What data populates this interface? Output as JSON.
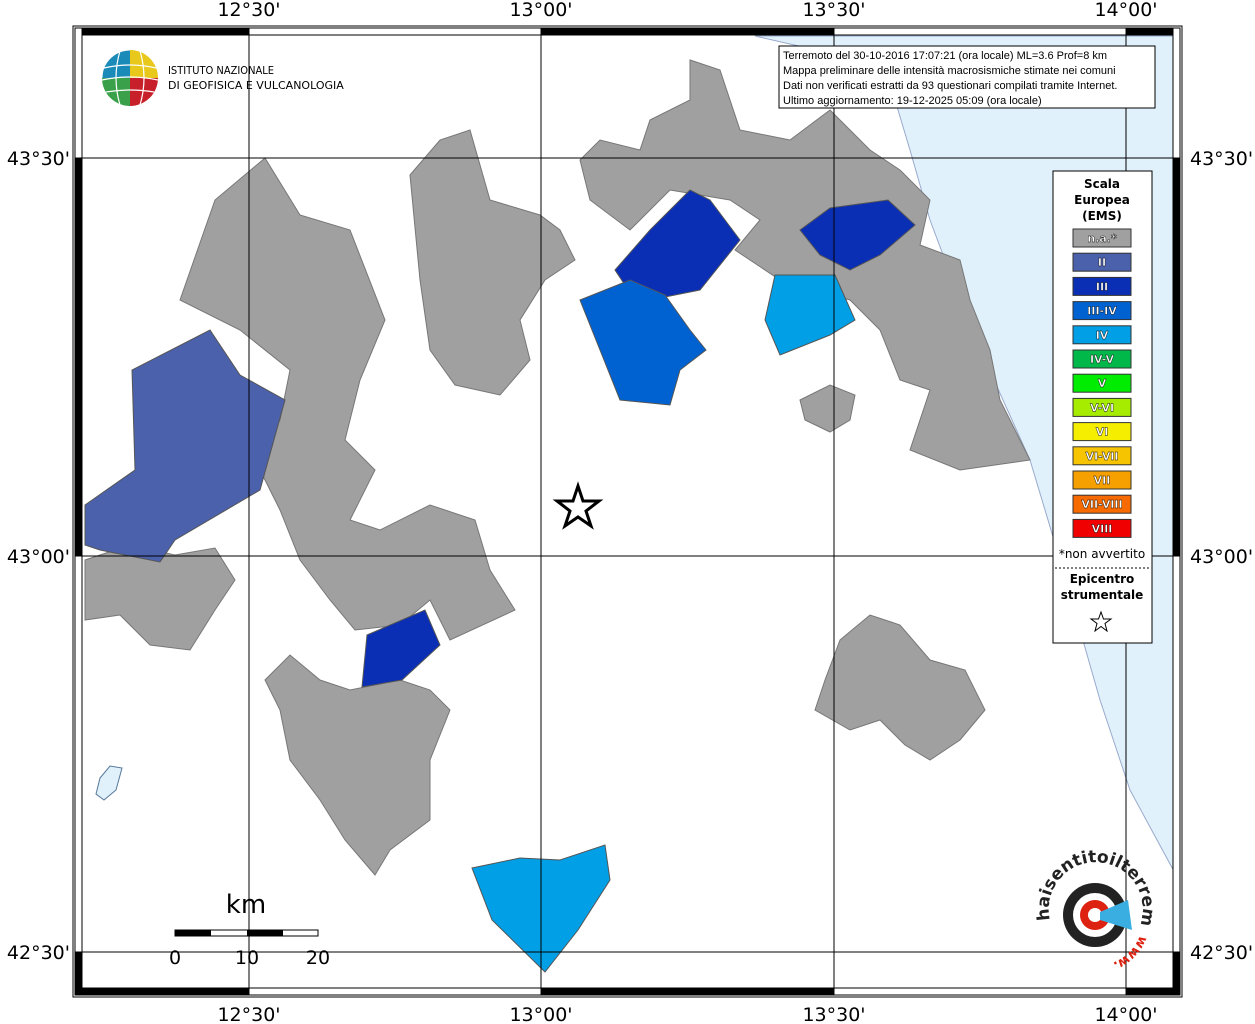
{
  "header": {
    "info_lines": [
      "Terremoto del 30-10-2016 17:07:21 (ora locale) ML=3.6 Prof=8 km",
      "Mappa preliminare delle intensità macrosismiche stimate nei comuni",
      "Dati non verificati estratti da 93 questionari compilati tramite Internet.",
      "Ultimo aggiornamento: 19-12-2025 05:09 (ora locale)"
    ]
  },
  "logo": {
    "lines": [
      "ISTITUTO NAZIONALE",
      "DI GEOFISICA E VULCANOLOGIA"
    ]
  },
  "axes": {
    "longitude": [
      "12°30'",
      "13°00'",
      "13°30'",
      "14°00'"
    ],
    "latitude": [
      "43°30'",
      "43°00'",
      "42°30'"
    ]
  },
  "legend": {
    "title_lines": [
      "Scala",
      "Europea",
      "(EMS)"
    ],
    "items": [
      {
        "label": "n.a.*",
        "color": "#a0a0a0"
      },
      {
        "label": "II",
        "color": "#4b61ab"
      },
      {
        "label": "III",
        "color": "#0a2fb5"
      },
      {
        "label": "III-IV",
        "color": "#0062d0"
      },
      {
        "label": "IV",
        "color": "#009fe6"
      },
      {
        "label": "IV-V",
        "color": "#00b84a"
      },
      {
        "label": "V",
        "color": "#00ec00"
      },
      {
        "label": "V-VI",
        "color": "#a6ec00"
      },
      {
        "label": "VI",
        "color": "#f6ee00"
      },
      {
        "label": "VI-VII",
        "color": "#f6c400"
      },
      {
        "label": "VII",
        "color": "#f6a000"
      },
      {
        "label": "VII-VIII",
        "color": "#f66a00"
      },
      {
        "label": "VIII",
        "color": "#f00000"
      }
    ],
    "note": "*non avvertito",
    "epicenter_lines": [
      "Epicentro",
      "strumentale"
    ]
  },
  "scale_bar": {
    "unit": "km",
    "labels": [
      "0",
      "10",
      "20"
    ]
  },
  "badge": {
    "text": "haisentitoilterremoto.it",
    "prefix": "www."
  }
}
